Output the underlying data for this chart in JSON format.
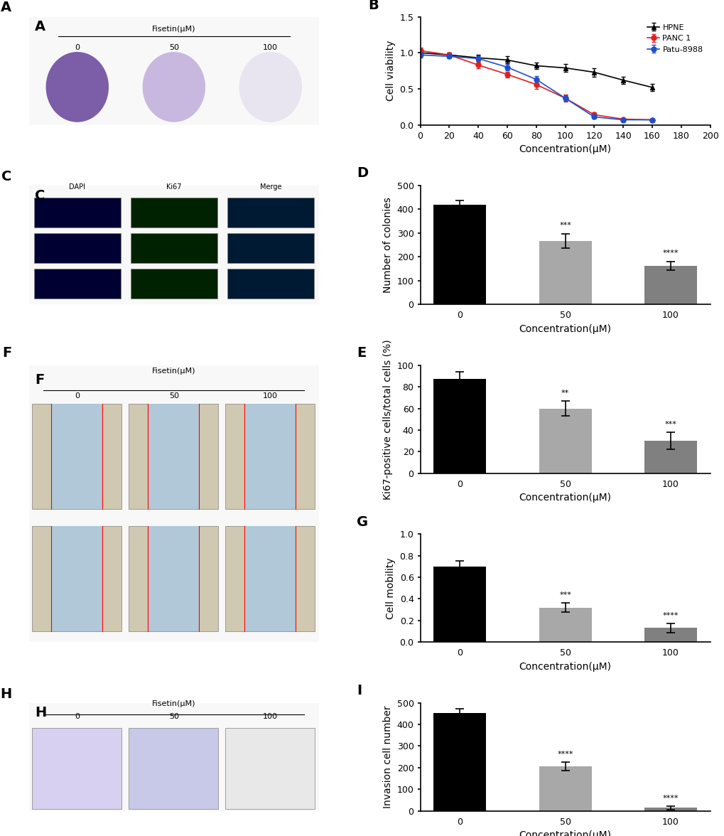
{
  "panel_B": {
    "x": [
      0,
      20,
      40,
      60,
      80,
      100,
      120,
      140,
      160
    ],
    "HPNE_y": [
      1.0,
      0.97,
      0.93,
      0.9,
      0.82,
      0.79,
      0.73,
      0.62,
      0.52
    ],
    "HPNE_err": [
      0.03,
      0.03,
      0.04,
      0.05,
      0.04,
      0.05,
      0.06,
      0.05,
      0.05
    ],
    "PANC1_y": [
      1.03,
      0.97,
      0.83,
      0.7,
      0.56,
      0.37,
      0.14,
      0.08,
      0.07
    ],
    "PANC1_err": [
      0.04,
      0.03,
      0.04,
      0.04,
      0.06,
      0.05,
      0.03,
      0.02,
      0.02
    ],
    "Patu_y": [
      0.97,
      0.95,
      0.92,
      0.8,
      0.63,
      0.37,
      0.11,
      0.07,
      0.07
    ],
    "Patu_err": [
      0.04,
      0.03,
      0.04,
      0.04,
      0.05,
      0.04,
      0.02,
      0.02,
      0.02
    ],
    "ylabel": "Cell viability",
    "xlabel": "Concentration(μM)",
    "ylim": [
      0.0,
      1.5
    ],
    "xlim": [
      0,
      200
    ],
    "yticks": [
      0.0,
      0.5,
      1.0,
      1.5
    ],
    "xticks": [
      0,
      20,
      40,
      60,
      80,
      100,
      120,
      140,
      160,
      180,
      200
    ],
    "HPNE_color": "#000000",
    "PANC1_color": "#e02020",
    "Patu_color": "#1f4fcc",
    "legend_labels": [
      "HPNE",
      "PANC 1",
      "Patu-8988"
    ]
  },
  "panel_D": {
    "categories": [
      "0",
      "50",
      "100"
    ],
    "values": [
      418,
      268,
      163
    ],
    "errors": [
      18,
      30,
      18
    ],
    "colors": [
      "#000000",
      "#a8a8a8",
      "#808080"
    ],
    "ylabel": "Number of colonies",
    "xlabel": "Concentration(μM)",
    "ylim": [
      0,
      500
    ],
    "yticks": [
      0,
      100,
      200,
      300,
      400,
      500
    ],
    "sig_labels": [
      "",
      "***",
      "****"
    ]
  },
  "panel_E": {
    "categories": [
      "0",
      "50",
      "100"
    ],
    "values": [
      87,
      60,
      30
    ],
    "errors": [
      7,
      7,
      8
    ],
    "colors": [
      "#000000",
      "#a8a8a8",
      "#808080"
    ],
    "ylabel": "Ki67-positive cells/total cells (%)",
    "xlabel": "Concentration(μM)",
    "ylim": [
      0,
      100
    ],
    "yticks": [
      0,
      20,
      40,
      60,
      80,
      100
    ],
    "sig_labels": [
      "",
      "**",
      "***"
    ]
  },
  "panel_G": {
    "categories": [
      "0",
      "50",
      "100"
    ],
    "values": [
      0.7,
      0.32,
      0.13
    ],
    "errors": [
      0.05,
      0.04,
      0.04
    ],
    "colors": [
      "#000000",
      "#a8a8a8",
      "#808080"
    ],
    "ylabel": "Cell mobility",
    "xlabel": "Concentration(μM)",
    "ylim": [
      0.0,
      1.0
    ],
    "yticks": [
      0.0,
      0.2,
      0.4,
      0.6,
      0.8,
      1.0
    ],
    "sig_labels": [
      "",
      "***",
      "****"
    ]
  },
  "panel_I": {
    "categories": [
      "0",
      "50",
      "100"
    ],
    "values": [
      452,
      205,
      15
    ],
    "errors": [
      20,
      20,
      8
    ],
    "colors": [
      "#000000",
      "#a8a8a8",
      "#808080"
    ],
    "ylabel": "Invasion cell number",
    "xlabel": "Concentration(μM)",
    "ylim": [
      0,
      500
    ],
    "yticks": [
      0,
      100,
      200,
      300,
      400,
      500
    ],
    "sig_labels": [
      "",
      "****",
      "****"
    ]
  },
  "label_fontsize": 10,
  "panel_label_fontsize": 14,
  "tick_fontsize": 9,
  "axis_linewidth": 1.2
}
